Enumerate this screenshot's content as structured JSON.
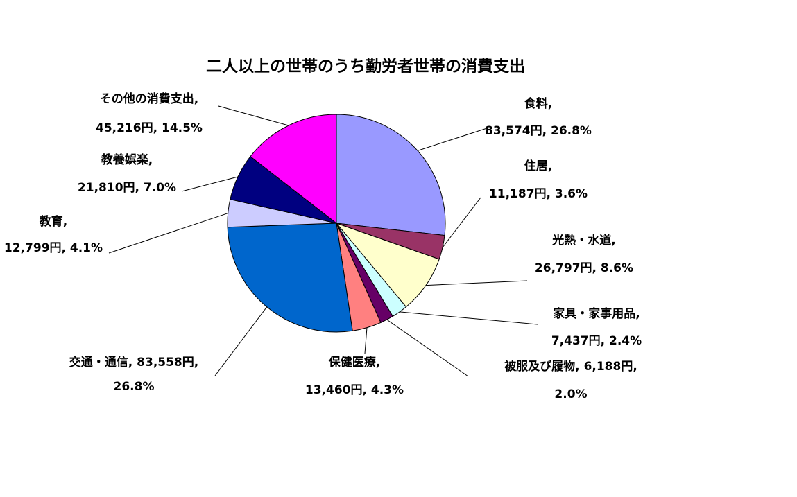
{
  "chart_data": {
    "type": "pie",
    "title": "二人以上の世帯のうち勤労者世帯の消費支出",
    "slices": [
      {
        "name": "食料",
        "value": 83574,
        "percent": 26.8,
        "color": "#9999ff",
        "line1": "食料,",
        "line2": "83,574円, 26.8%"
      },
      {
        "name": "住居",
        "value": 11187,
        "percent": 3.6,
        "color": "#993366",
        "line1": "住居,",
        "line2": "11,187円, 3.6%"
      },
      {
        "name": "光熱・水道",
        "value": 26797,
        "percent": 8.6,
        "color": "#ffffcc",
        "line1": "光熱・水道,",
        "line2": "26,797円, 8.6%"
      },
      {
        "name": "家具・家事用品",
        "value": 7437,
        "percent": 2.4,
        "color": "#ccffff",
        "line1": "家具・家事用品,",
        "line2": "7,437円, 2.4%"
      },
      {
        "name": "被服及び履物",
        "value": 6188,
        "percent": 2.0,
        "color": "#660066",
        "line1": "被服及び履物, 6,188円,",
        "line2": "2.0%"
      },
      {
        "name": "保健医療",
        "value": 13460,
        "percent": 4.3,
        "color": "#ff8080",
        "line1": "保健医療,",
        "line2": "13,460円, 4.3%"
      },
      {
        "name": "交通・通信",
        "value": 83558,
        "percent": 26.8,
        "color": "#0066cc",
        "line1": "交通・通信, 83,558円,",
        "line2": "26.8%"
      },
      {
        "name": "教育",
        "value": 12799,
        "percent": 4.1,
        "color": "#ccccff",
        "line1": "教育,",
        "line2": "12,799円, 4.1%"
      },
      {
        "name": "教養娯楽",
        "value": 21810,
        "percent": 7.0,
        "color": "#000080",
        "line1": "教養娯楽,",
        "line2": "21,810円, 7.0%"
      },
      {
        "name": "その他の消費支出",
        "value": 45216,
        "percent": 14.5,
        "color": "#ff00ff",
        "line1": "その他の消費支出,",
        "line2": "45,216円, 14.5%"
      }
    ],
    "start_angle": "12 o'clock",
    "direction": "clockwise",
    "legend": "none",
    "slice_border": "#000000"
  }
}
